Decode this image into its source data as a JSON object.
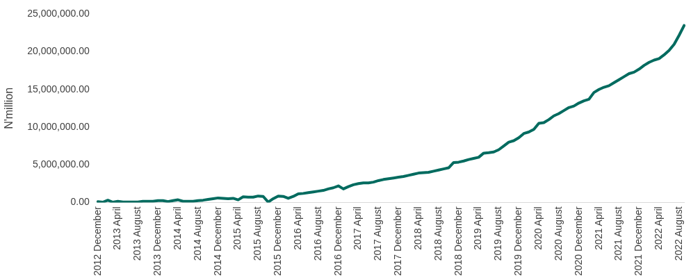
{
  "chart_data": {
    "type": "line",
    "ylabel": "N'million",
    "categories": [
      "2012 December",
      null,
      null,
      null,
      "2013 April",
      null,
      null,
      null,
      "2013 August",
      null,
      null,
      null,
      "2013 December",
      null,
      null,
      null,
      "2014 April",
      null,
      null,
      null,
      "2014 August",
      null,
      null,
      null,
      "2014 December",
      null,
      null,
      null,
      "2015 April",
      null,
      null,
      null,
      "2015 August",
      null,
      null,
      null,
      "2015 December",
      null,
      null,
      null,
      "2016 April",
      null,
      null,
      null,
      "2016 August",
      null,
      null,
      null,
      "2016 December",
      null,
      null,
      null,
      "2017 April",
      null,
      null,
      null,
      "2017 August",
      null,
      null,
      null,
      "2017 December",
      null,
      null,
      null,
      "2018 April",
      null,
      null,
      null,
      "2018 August",
      null,
      null,
      null,
      "2018 December",
      null,
      null,
      null,
      "2019 April",
      null,
      null,
      null,
      "2019 August",
      null,
      null,
      null,
      "2019 December",
      null,
      null,
      null,
      "2020 April",
      null,
      null,
      null,
      "2020 August",
      null,
      null,
      null,
      "2020 December",
      null,
      null,
      null,
      "2021 April",
      null,
      null,
      null,
      "2021 August",
      null,
      null,
      null,
      "2021 December",
      null,
      null,
      null,
      "2022 April",
      null,
      null,
      null,
      "2022 August",
      null
    ],
    "series": [
      {
        "color": "#006b5f",
        "values": [
          100000,
          30000,
          300000,
          30000,
          150000,
          50000,
          50000,
          50000,
          50000,
          150000,
          150000,
          150000,
          250000,
          250000,
          100000,
          250000,
          350000,
          150000,
          150000,
          150000,
          250000,
          300000,
          400000,
          500000,
          600000,
          550000,
          500000,
          550000,
          350000,
          750000,
          700000,
          700000,
          850000,
          800000,
          50000,
          500000,
          850000,
          800000,
          550000,
          800000,
          1150000,
          1200000,
          1300000,
          1400000,
          1500000,
          1600000,
          1800000,
          1950000,
          2200000,
          1800000,
          2100000,
          2350000,
          2500000,
          2600000,
          2600000,
          2700000,
          2900000,
          3050000,
          3150000,
          3250000,
          3350000,
          3450000,
          3600000,
          3750000,
          3900000,
          3950000,
          4000000,
          4150000,
          4300000,
          4450000,
          4600000,
          5300000,
          5350000,
          5500000,
          5700000,
          5850000,
          6000000,
          6550000,
          6600000,
          6700000,
          7000000,
          7500000,
          8000000,
          8200000,
          8600000,
          9150000,
          9350000,
          9700000,
          10500000,
          10600000,
          11000000,
          11500000,
          11800000,
          12200000,
          12600000,
          12800000,
          13200000,
          13500000,
          13700000,
          14600000,
          15000000,
          15300000,
          15500000,
          15900000,
          16300000,
          16700000,
          17100000,
          17300000,
          17700000,
          18200000,
          18600000,
          18900000,
          19100000,
          19600000,
          20200000,
          21000000,
          22200000,
          23500000
        ]
      }
    ],
    "ylim": [
      0,
      25000000
    ],
    "yticks": [
      {
        "value": 0,
        "label": "0.00"
      },
      {
        "value": 5000000,
        "label": "5,000,000.00"
      },
      {
        "value": 10000000,
        "label": "10,000,000.00"
      },
      {
        "value": 15000000,
        "label": "15,000,000.00"
      },
      {
        "value": 20000000,
        "label": "20,000,000.00"
      },
      {
        "value": 25000000,
        "label": "25,000,000.00"
      }
    ],
    "grid": false,
    "legend": false,
    "marker": "none",
    "line_style": "solid"
  }
}
